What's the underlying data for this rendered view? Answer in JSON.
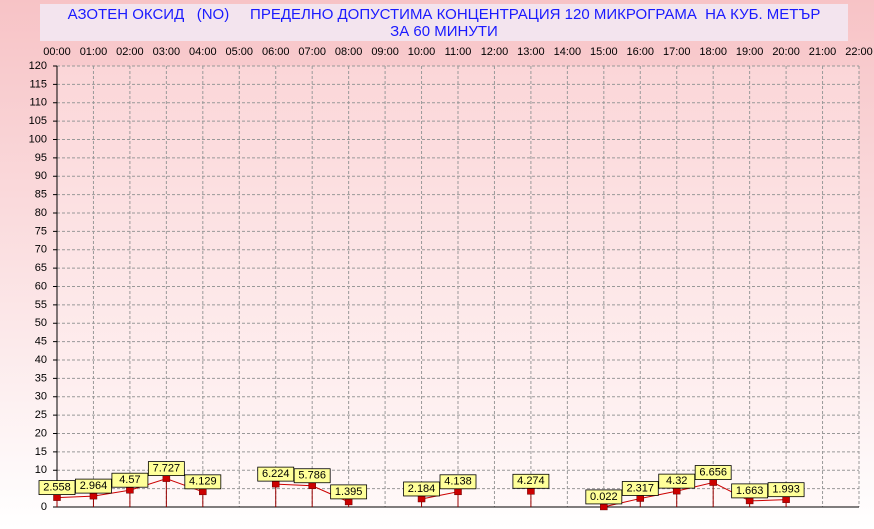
{
  "chart_data": {
    "type": "line",
    "title": "АЗОТЕН ОКСИД   (NO)     ПРЕДЕЛНО ДОПУСТИМА КОНЦЕНТРАЦИЯ 120 МИКРОГРАМА  НА КУБ. МЕТЪР",
    "subtitle": "ЗА 60 МИНУТИ",
    "categories": [
      "00:00",
      "01:00",
      "02:00",
      "03:00",
      "04:00",
      "05:00",
      "06:00",
      "07:00",
      "08:00",
      "09:00",
      "10:00",
      "11:00",
      "12:00",
      "13:00",
      "14:00",
      "15:00",
      "16:00",
      "17:00",
      "18:00",
      "19:00",
      "20:00",
      "21:00",
      "22:00"
    ],
    "series": [
      {
        "color": "#cc0000",
        "values": [
          2.558,
          2.964,
          4.57,
          7.727,
          4.129,
          null,
          6.224,
          5.786,
          1.395,
          null,
          2.184,
          4.138,
          null,
          4.274,
          null,
          0.022,
          2.317,
          4.32,
          6.656,
          1.663,
          1.993,
          null,
          null
        ]
      }
    ],
    "ylim": [
      0,
      120
    ],
    "yticks": [
      0,
      5,
      10,
      15,
      20,
      25,
      30,
      35,
      40,
      45,
      50,
      55,
      60,
      65,
      70,
      75,
      80,
      85,
      90,
      95,
      100,
      105,
      110,
      115,
      120
    ],
    "grid": true
  }
}
